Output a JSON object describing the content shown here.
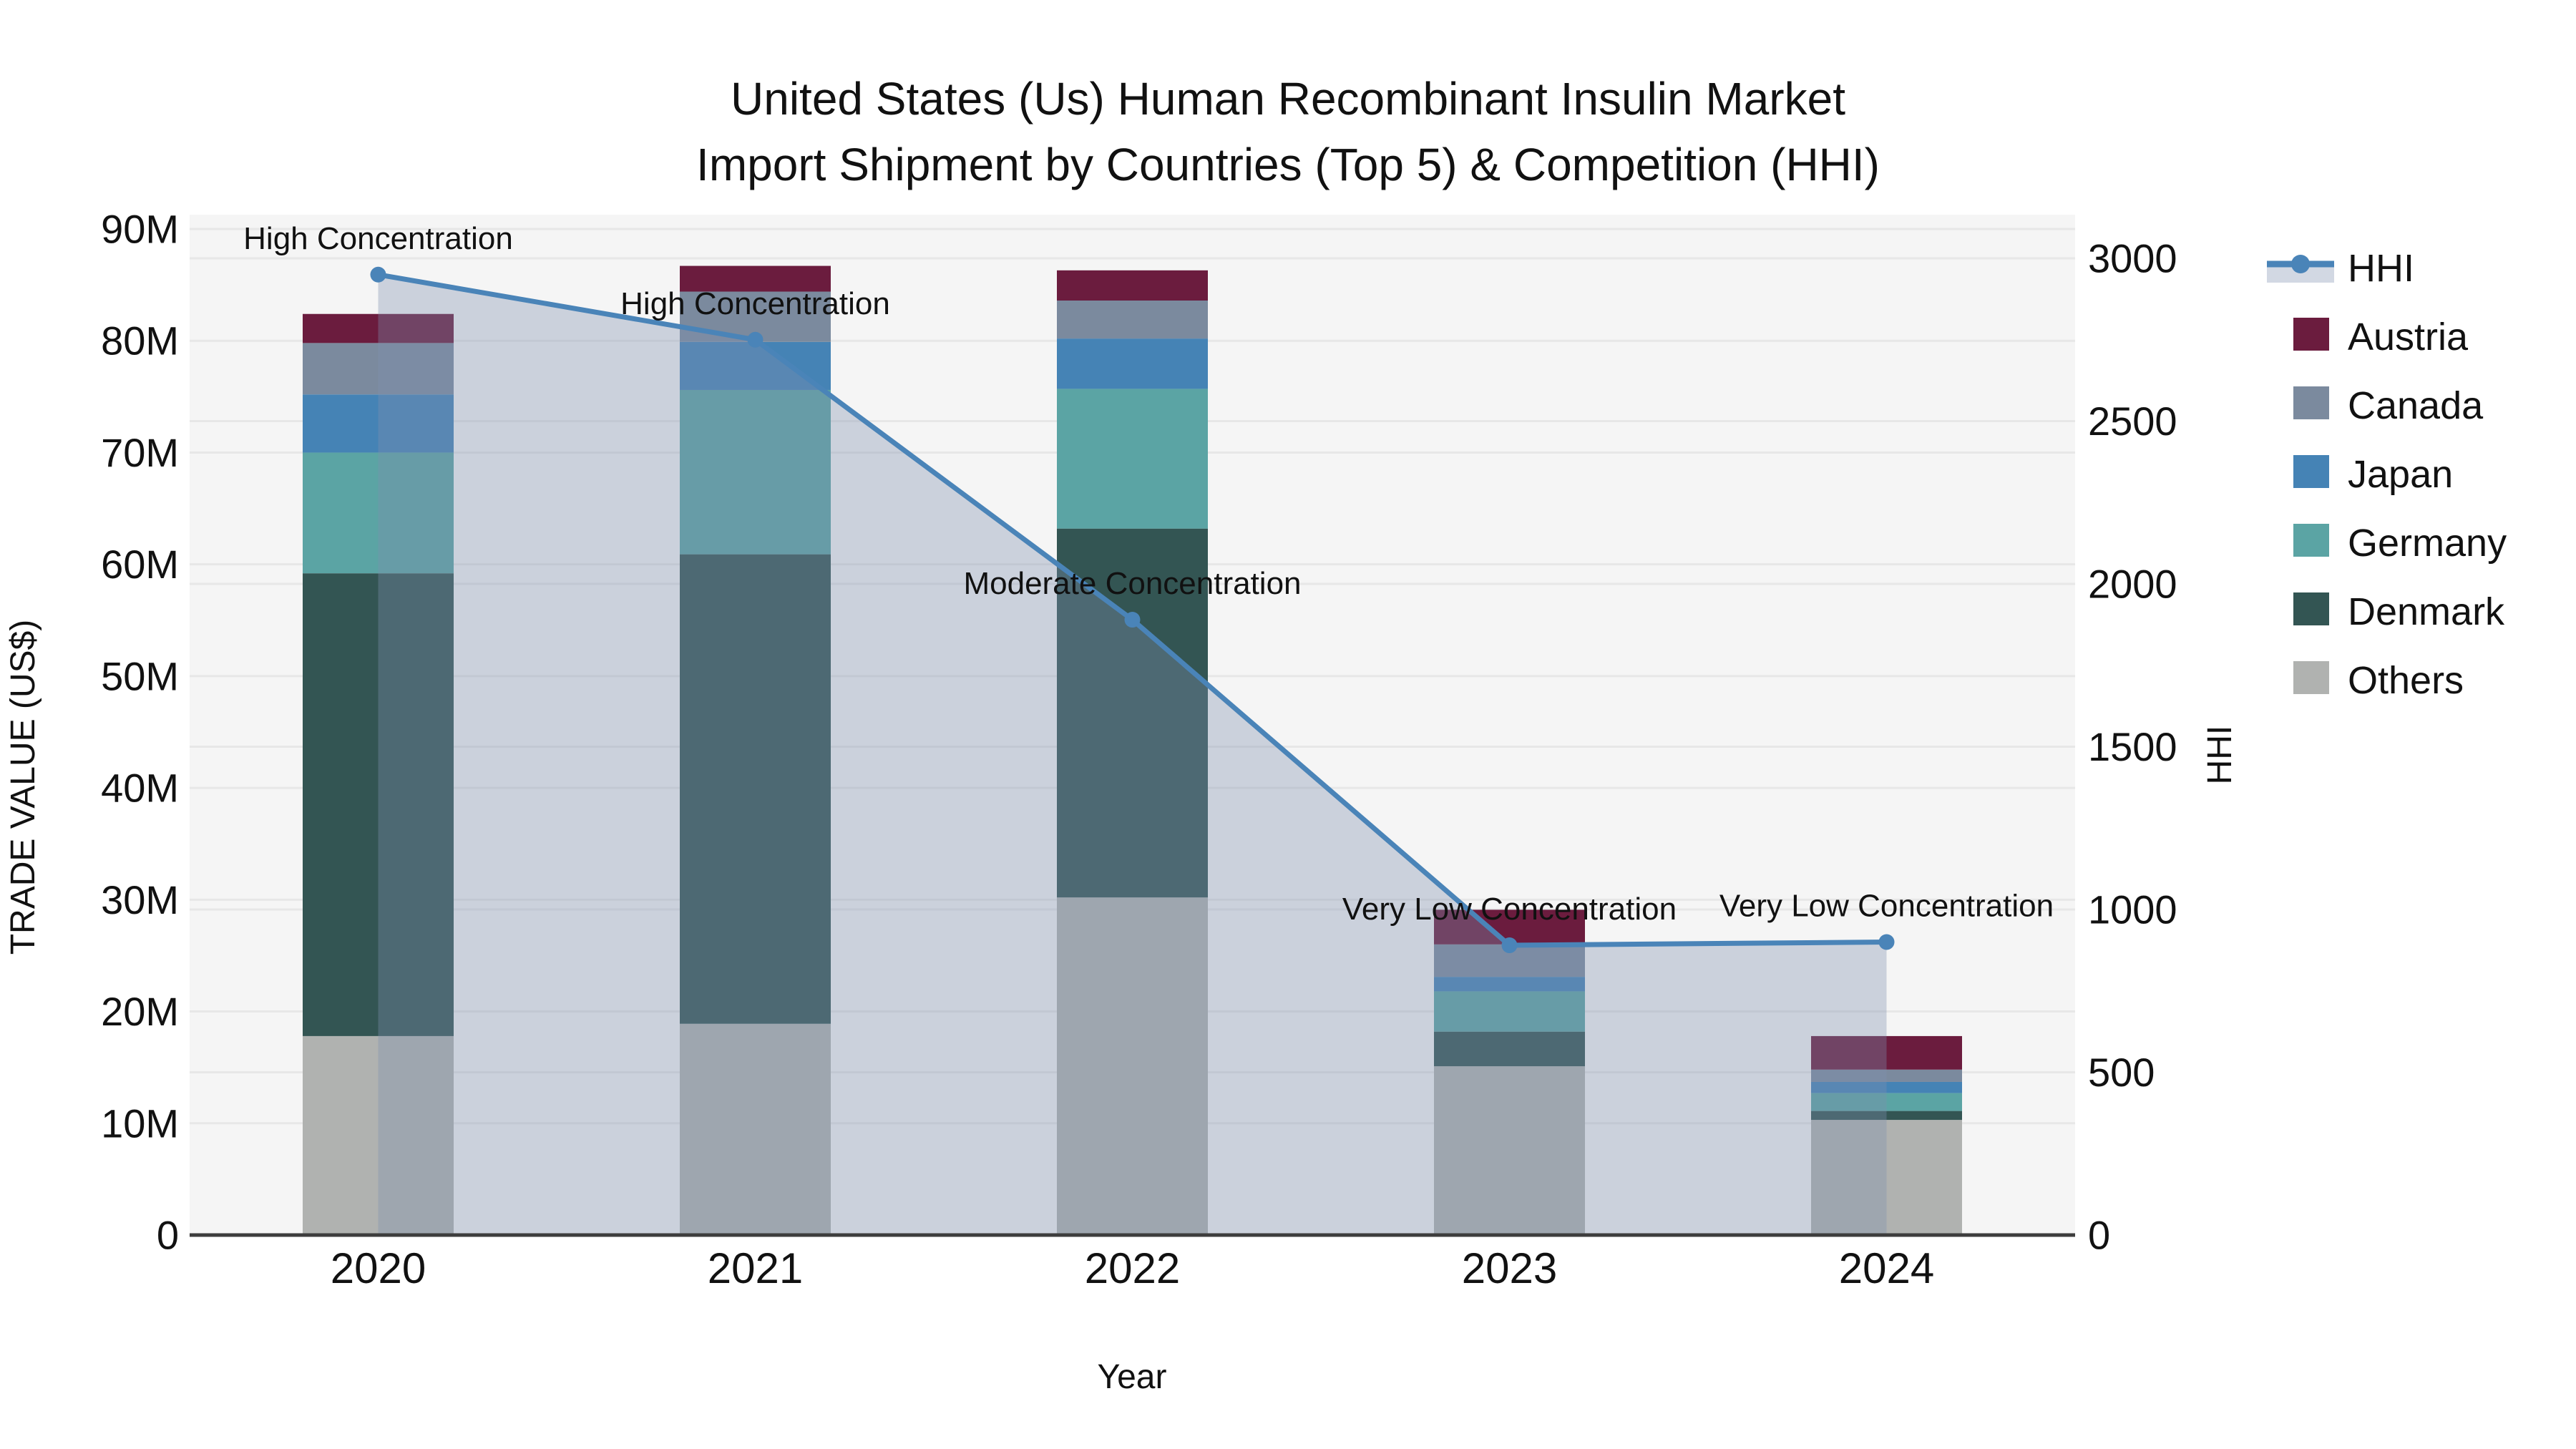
{
  "figure": {
    "title_line1": "United States (Us) Human Recombinant Insulin Market",
    "title_line2": "Import Shipment by Countries (Top 5) & Competition (HHI)"
  },
  "chart_data": {
    "type": "bar",
    "subtype": "stacked-bar-with-line-overlay",
    "title": "United States (Us) Human Recombinant Insulin Market Import Shipment by Countries (Top 5) & Competition (HHI)",
    "xlabel": "Year",
    "ylabel_left": "TRADE VALUE (US$)",
    "ylabel_right": "HHI",
    "categories": [
      "2020",
      "2021",
      "2022",
      "2023",
      "2024"
    ],
    "ylim_left_millions": [
      0,
      91.3
    ],
    "ylim_right": [
      0,
      3135
    ],
    "grid": true,
    "legend_position": "right",
    "yticks_left": {
      "values": [
        0,
        10,
        20,
        30,
        40,
        50,
        60,
        70,
        80,
        90
      ],
      "labels": [
        "0",
        "10M",
        "20M",
        "30M",
        "40M",
        "50M",
        "60M",
        "70M",
        "80M",
        "90M"
      ]
    },
    "yticks_right": {
      "values": [
        0,
        500,
        1000,
        1500,
        2000,
        2500,
        3000
      ],
      "labels": [
        "0",
        "500",
        "1000",
        "1500",
        "2000",
        "2500",
        "3000"
      ]
    },
    "stack_order": "bottom-to-top",
    "series": [
      {
        "name": "Others",
        "color": "#B0B2B0",
        "values_millions": [
          17.8,
          18.9,
          30.2,
          15.1,
          10.3
        ]
      },
      {
        "name": "Denmark",
        "color": "#335553",
        "values_millions": [
          41.4,
          42.0,
          33.0,
          3.1,
          0.8
        ]
      },
      {
        "name": "Germany",
        "color": "#5BA4A4",
        "values_millions": [
          10.8,
          14.7,
          12.5,
          3.6,
          1.6
        ]
      },
      {
        "name": "Japan",
        "color": "#4583B5",
        "values_millions": [
          5.2,
          4.3,
          4.5,
          1.3,
          1.0
        ]
      },
      {
        "name": "Canada",
        "color": "#7B8A9E",
        "values_millions": [
          4.6,
          4.5,
          3.4,
          2.9,
          1.1
        ]
      },
      {
        "name": "Austria",
        "color": "#6B1C3E",
        "values_millions": [
          2.6,
          2.3,
          2.7,
          3.1,
          3.0
        ]
      }
    ],
    "bar_totals_millions": [
      82.4,
      86.7,
      86.3,
      29.1,
      17.8
    ],
    "hhi_line": {
      "name": "HHI",
      "line_color": "#4A84B8",
      "fill_color": "rgba(125,143,174,0.35)",
      "values": [
        2950,
        2750,
        1890,
        890,
        900
      ]
    },
    "annotations": [
      {
        "category": "2020",
        "text": "High Concentration"
      },
      {
        "category": "2021",
        "text": "High Concentration"
      },
      {
        "category": "2022",
        "text": "Moderate Concentration"
      },
      {
        "category": "2023",
        "text": "Very Low Concentration"
      },
      {
        "category": "2024",
        "text": "Very Low Concentration"
      }
    ],
    "legend_order": [
      "HHI",
      "Austria",
      "Canada",
      "Japan",
      "Germany",
      "Denmark",
      "Others"
    ],
    "colors": {
      "plot_background": "#f5f5f5",
      "figure_background": "#ffffff",
      "gridline": "#e7e7e7",
      "axis_line": "#3d3d3d",
      "text": "#111111"
    }
  }
}
